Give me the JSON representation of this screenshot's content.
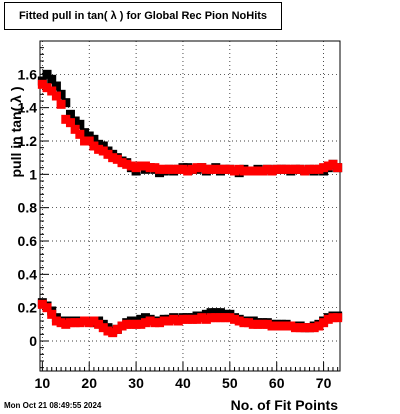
{
  "chart_data": {
    "type": "scatter",
    "title": "Fitted pull in tan( λ ) for Global Rec Pion NoHits",
    "xlabel": "No. of Fit Points",
    "ylabel": "pull in tan( λ )",
    "timestamp": "Mon Oct 21 08:49:55 2024",
    "xlim": [
      9.5,
      73.5
    ],
    "ylim": [
      -0.18,
      1.8
    ],
    "xticks": [
      10,
      20,
      30,
      40,
      50,
      60,
      70
    ],
    "yticks": [
      0,
      0.2,
      0.4,
      0.6,
      0.8,
      1,
      1.2,
      1.4,
      1.6
    ],
    "ytick_labels": [
      "0",
      "0.2",
      "0.4",
      "0.6",
      "0.8",
      "1",
      "1.2",
      "1.4",
      "1.6"
    ],
    "grid": true,
    "series": [
      {
        "color": "#000000",
        "x": [
          10,
          11,
          12,
          13,
          14,
          15,
          16,
          17,
          18,
          19,
          20,
          21,
          22,
          23,
          24,
          25,
          26,
          27,
          28,
          29,
          30,
          31,
          32,
          33,
          34,
          35,
          36,
          37,
          38,
          39,
          40,
          41,
          42,
          43,
          44,
          45,
          46,
          47,
          48,
          49,
          50,
          51,
          52,
          53,
          54,
          55,
          56,
          57,
          58,
          59,
          60,
          61,
          62,
          63,
          64,
          65,
          66,
          67,
          68,
          69,
          70,
          71,
          72,
          73
        ],
        "y": [
          1.56,
          1.6,
          1.57,
          1.53,
          1.48,
          1.43,
          1.36,
          1.32,
          1.3,
          1.25,
          1.23,
          1.21,
          1.18,
          1.17,
          1.14,
          1.12,
          1.1,
          1.08,
          1.07,
          1.04,
          1.02,
          1.05,
          1.03,
          1.04,
          1.03,
          1.01,
          1.02,
          1.03,
          1.02,
          1.03,
          1.04,
          1.04,
          1.03,
          1.03,
          1.04,
          1.02,
          1.03,
          1.04,
          1.02,
          1.03,
          1.03,
          1.02,
          1.01,
          1.03,
          1.02,
          1.02,
          1.03,
          1.02,
          1.03,
          1.02,
          1.03,
          1.03,
          1.03,
          1.02,
          1.03,
          1.03,
          1.02,
          1.03,
          1.02,
          1.03,
          1.02,
          1.04,
          1.06,
          1.04
        ]
      },
      {
        "color": "#ff0000",
        "x": [
          10,
          11,
          12,
          13,
          14,
          15,
          16,
          17,
          18,
          19,
          20,
          21,
          22,
          23,
          24,
          25,
          26,
          27,
          28,
          29,
          30,
          31,
          32,
          33,
          34,
          35,
          36,
          37,
          38,
          39,
          40,
          41,
          42,
          43,
          44,
          45,
          46,
          47,
          48,
          49,
          50,
          51,
          52,
          53,
          54,
          55,
          56,
          57,
          58,
          59,
          60,
          61,
          62,
          63,
          64,
          65,
          66,
          67,
          68,
          69,
          70,
          71,
          72,
          73
        ],
        "y": [
          1.54,
          1.52,
          1.5,
          1.47,
          1.42,
          1.33,
          1.31,
          1.27,
          1.24,
          1.2,
          1.2,
          1.17,
          1.15,
          1.14,
          1.12,
          1.1,
          1.09,
          1.07,
          1.06,
          1.05,
          1.04,
          1.05,
          1.05,
          1.04,
          1.04,
          1.03,
          1.03,
          1.03,
          1.03,
          1.03,
          1.03,
          1.02,
          1.03,
          1.04,
          1.04,
          1.03,
          1.03,
          1.03,
          1.03,
          1.03,
          1.03,
          1.02,
          1.03,
          1.02,
          1.02,
          1.02,
          1.02,
          1.02,
          1.03,
          1.02,
          1.03,
          1.03,
          1.03,
          1.03,
          1.03,
          1.03,
          1.02,
          1.03,
          1.03,
          1.03,
          1.04,
          1.05,
          1.06,
          1.04
        ]
      },
      {
        "color": "#000000",
        "x": [
          10,
          11,
          12,
          13,
          14,
          15,
          16,
          17,
          18,
          19,
          20,
          21,
          22,
          23,
          24,
          25,
          26,
          27,
          28,
          29,
          30,
          31,
          32,
          33,
          34,
          35,
          36,
          37,
          38,
          39,
          40,
          41,
          42,
          43,
          44,
          45,
          46,
          47,
          48,
          49,
          50,
          51,
          52,
          53,
          54,
          55,
          56,
          57,
          58,
          59,
          60,
          61,
          62,
          63,
          64,
          65,
          66,
          67,
          68,
          69,
          70,
          71,
          72,
          73
        ],
        "y": [
          0.23,
          0.21,
          0.18,
          0.14,
          0.12,
          0.12,
          0.12,
          0.12,
          0.12,
          0.12,
          0.12,
          0.11,
          0.12,
          0.1,
          0.08,
          0.06,
          0.07,
          0.09,
          0.11,
          0.12,
          0.12,
          0.13,
          0.14,
          0.13,
          0.12,
          0.12,
          0.13,
          0.13,
          0.14,
          0.13,
          0.14,
          0.14,
          0.14,
          0.15,
          0.15,
          0.16,
          0.17,
          0.17,
          0.17,
          0.16,
          0.16,
          0.14,
          0.13,
          0.12,
          0.12,
          0.12,
          0.11,
          0.11,
          0.11,
          0.1,
          0.1,
          0.1,
          0.1,
          0.09,
          0.09,
          0.09,
          0.08,
          0.08,
          0.09,
          0.1,
          0.12,
          0.14,
          0.15,
          0.15
        ]
      },
      {
        "color": "#ff0000",
        "x": [
          10,
          11,
          12,
          13,
          14,
          15,
          16,
          17,
          18,
          19,
          20,
          21,
          22,
          23,
          24,
          25,
          26,
          27,
          28,
          29,
          30,
          31,
          32,
          33,
          34,
          35,
          36,
          37,
          38,
          39,
          40,
          41,
          42,
          43,
          44,
          45,
          46,
          47,
          48,
          49,
          50,
          51,
          52,
          53,
          54,
          55,
          56,
          57,
          58,
          59,
          60,
          61,
          62,
          63,
          64,
          65,
          66,
          67,
          68,
          69,
          70,
          71,
          72,
          73
        ],
        "y": [
          0.22,
          0.2,
          0.16,
          0.12,
          0.11,
          0.1,
          0.11,
          0.11,
          0.11,
          0.12,
          0.11,
          0.12,
          0.1,
          0.08,
          0.06,
          0.05,
          0.07,
          0.09,
          0.1,
          0.1,
          0.1,
          0.1,
          0.11,
          0.12,
          0.11,
          0.11,
          0.12,
          0.12,
          0.13,
          0.12,
          0.13,
          0.13,
          0.13,
          0.13,
          0.14,
          0.13,
          0.14,
          0.14,
          0.14,
          0.14,
          0.14,
          0.13,
          0.12,
          0.11,
          0.11,
          0.1,
          0.1,
          0.1,
          0.1,
          0.09,
          0.09,
          0.09,
          0.09,
          0.09,
          0.08,
          0.08,
          0.08,
          0.08,
          0.08,
          0.09,
          0.11,
          0.13,
          0.14,
          0.14
        ]
      }
    ]
  }
}
